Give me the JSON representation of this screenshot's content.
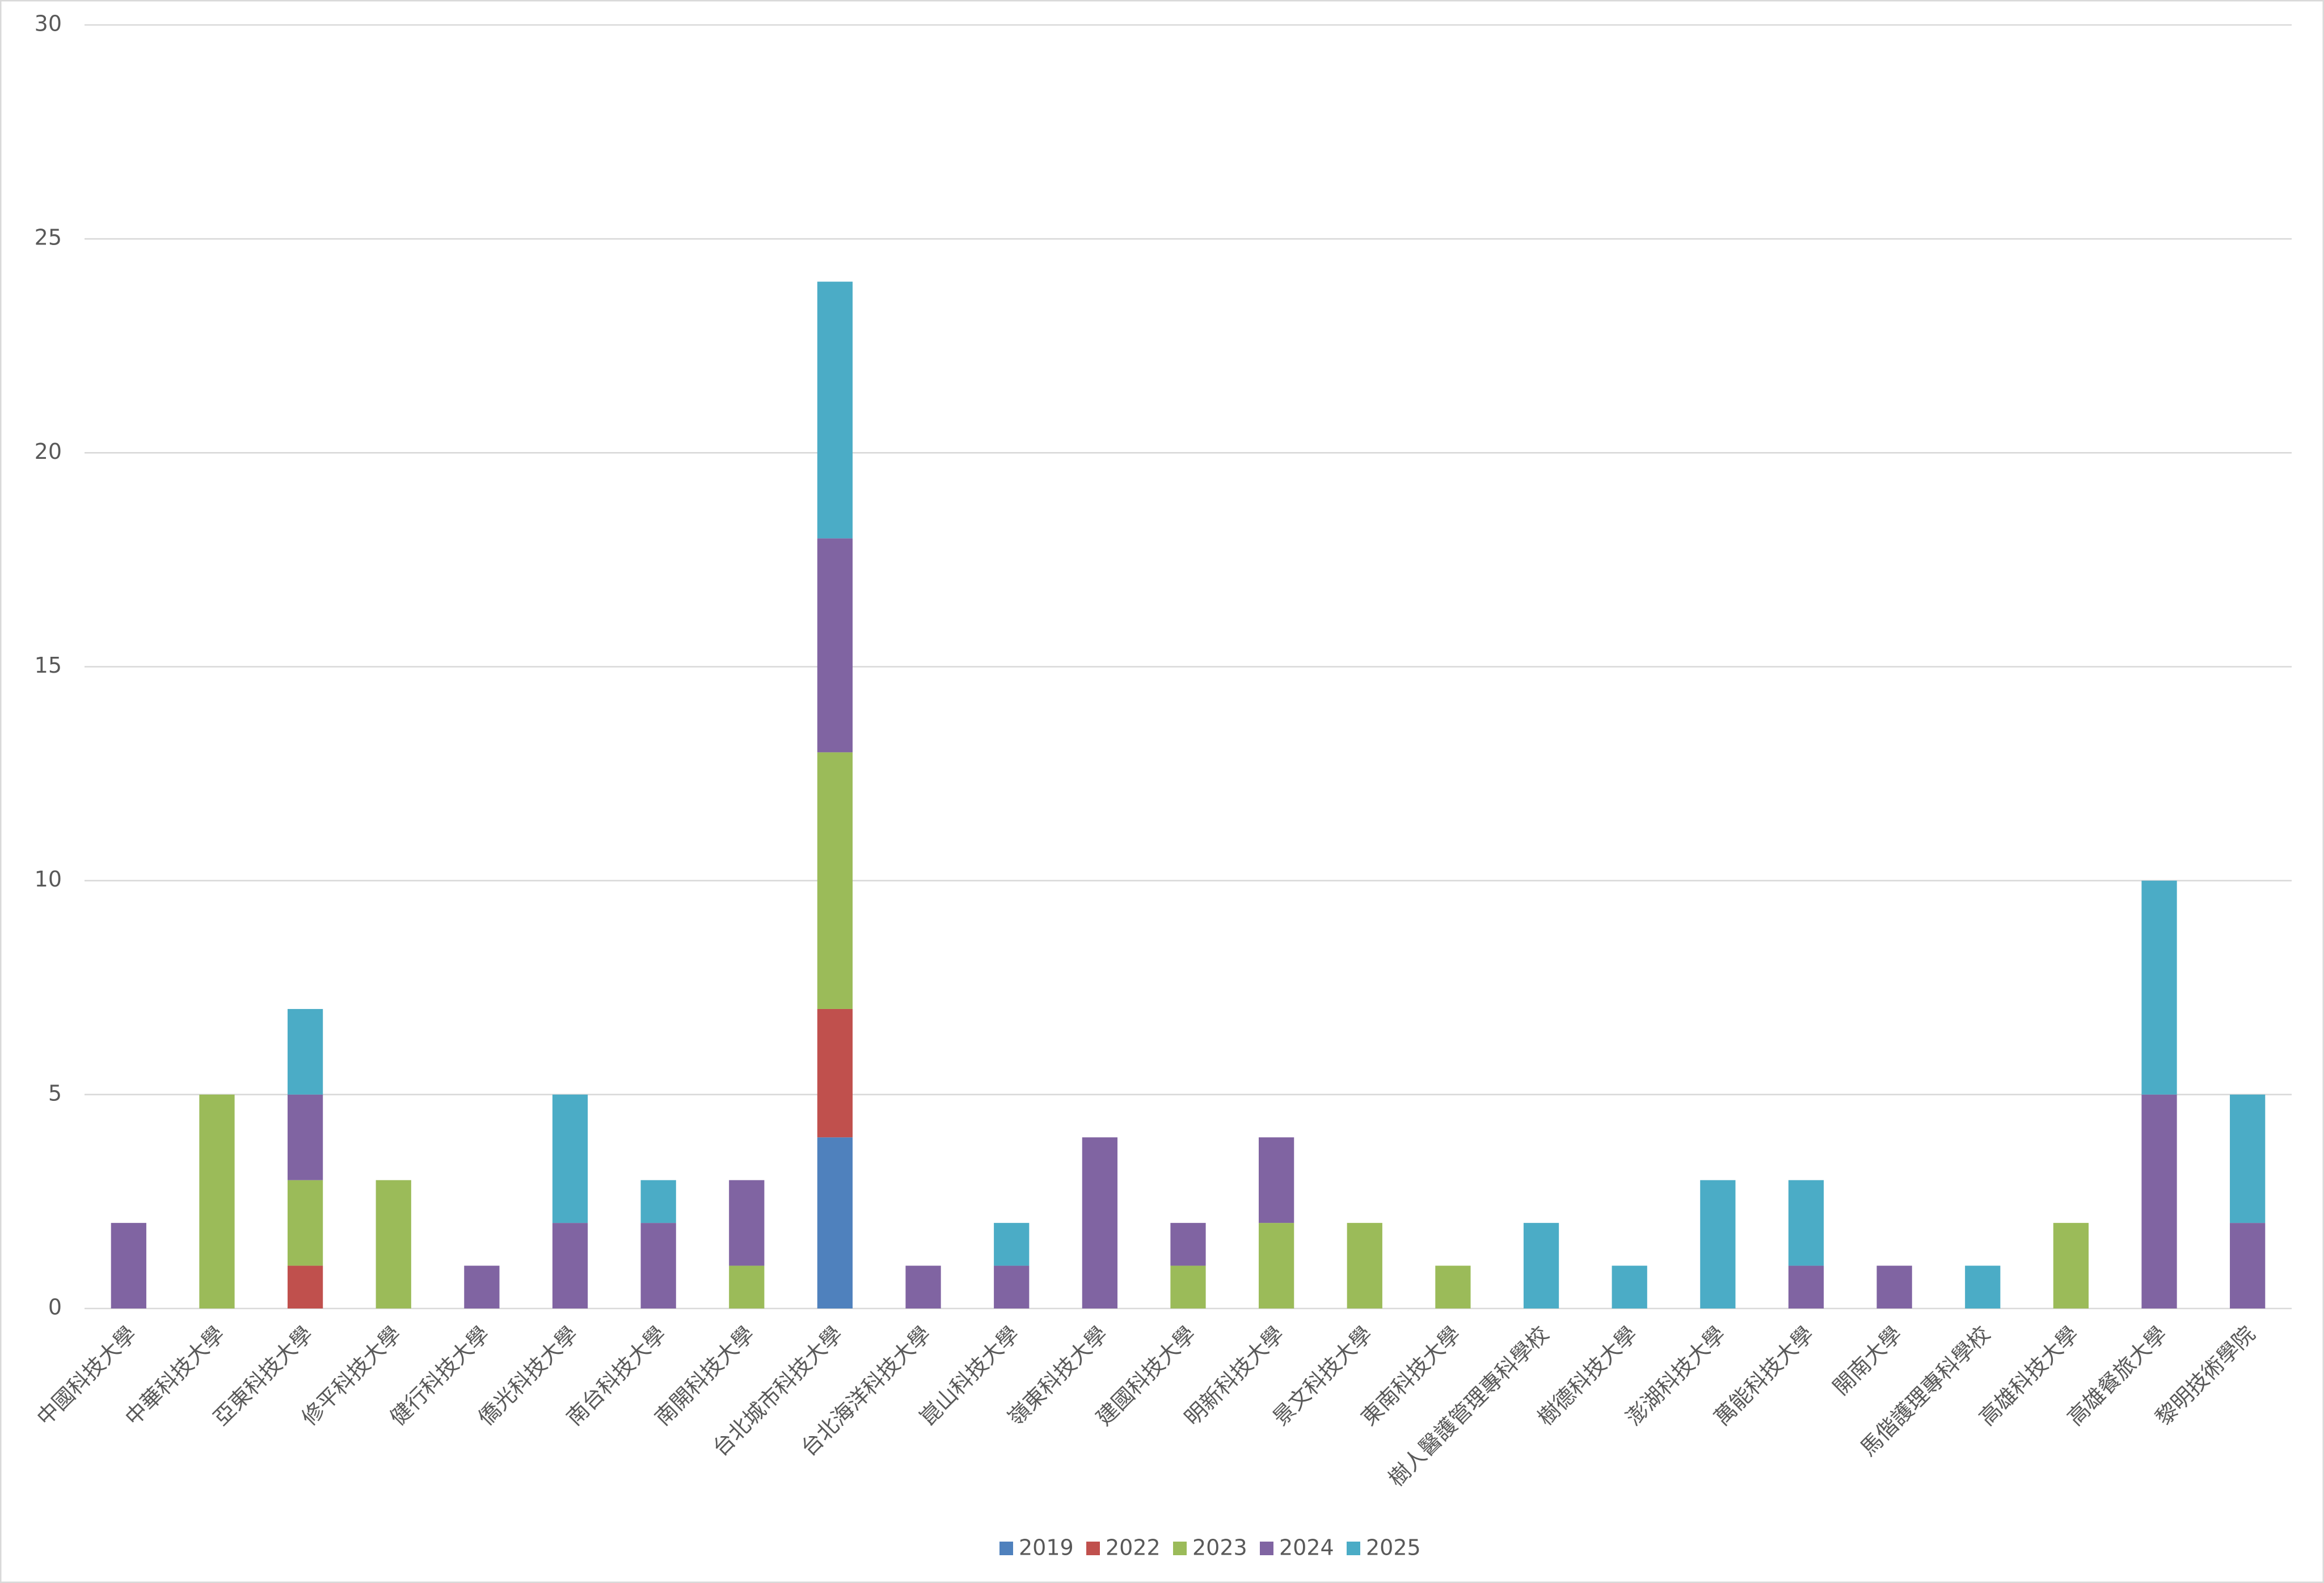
{
  "chart_data": {
    "type": "bar",
    "stacked": true,
    "grid": true,
    "legend": "bottom",
    "categories": [
      "中國科技大學",
      "中華科技大學",
      "亞東科技大學",
      "修平科技大學",
      "健行科技大學",
      "僑光科技大學",
      "南台科技大學",
      "南開科技大學",
      "台北城市科技大學",
      "台北海洋科技大學",
      "崑山科技大學",
      "嶺東科技大學",
      "建國科技大學",
      "明新科技大學",
      "景文科技大學",
      "東南科技大學",
      "樹人醫護管理專科學校",
      "樹德科技大學",
      "澎湖科技大學",
      "萬能科技大學",
      "開南大學",
      "馬偕護理專科學校",
      "高雄科技大學",
      "高雄餐旅大學",
      "黎明技術學院"
    ],
    "series": [
      {
        "name": "2019",
        "color": "#4f81bd",
        "values": [
          null,
          null,
          null,
          null,
          null,
          null,
          null,
          null,
          4,
          null,
          null,
          null,
          null,
          null,
          null,
          null,
          null,
          null,
          null,
          null,
          null,
          null,
          null,
          null,
          null
        ]
      },
      {
        "name": "2022",
        "color": "#c0504d",
        "values": [
          null,
          null,
          1,
          null,
          null,
          null,
          null,
          null,
          3,
          null,
          null,
          null,
          null,
          null,
          null,
          null,
          null,
          null,
          null,
          null,
          null,
          null,
          null,
          null,
          null
        ]
      },
      {
        "name": "2023",
        "color": "#9bbb59",
        "values": [
          null,
          5,
          2,
          3,
          null,
          null,
          null,
          1,
          6,
          null,
          null,
          null,
          1,
          2,
          2,
          1,
          null,
          null,
          null,
          null,
          null,
          null,
          2,
          null,
          null
        ]
      },
      {
        "name": "2024",
        "color": "#8064a2",
        "values": [
          2,
          null,
          2,
          null,
          1,
          2,
          2,
          2,
          5,
          1,
          1,
          4,
          1,
          2,
          null,
          null,
          null,
          null,
          null,
          1,
          1,
          null,
          null,
          5,
          2
        ]
      },
      {
        "name": "2025",
        "color": "#4bacc6",
        "values": [
          null,
          null,
          2,
          null,
          null,
          3,
          1,
          null,
          6,
          null,
          1,
          null,
          null,
          null,
          null,
          null,
          2,
          1,
          3,
          2,
          null,
          1,
          null,
          5,
          3
        ]
      }
    ],
    "ylim": [
      0,
      30
    ],
    "yticks": [
      0,
      5,
      10,
      15,
      20,
      25,
      30
    ]
  }
}
